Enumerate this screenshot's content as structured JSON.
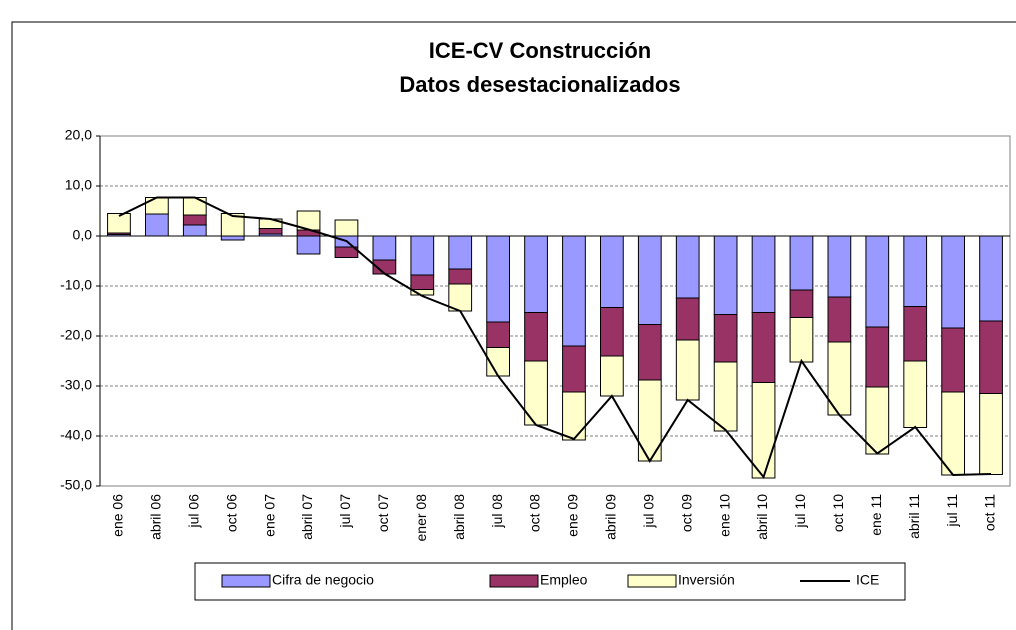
{
  "chart_data": {
    "type": "bar",
    "stacked": true,
    "title": "ICE-CV Construcción",
    "subtitle": "Datos desestacionalizados",
    "categories": [
      "ene 06",
      "abril 06",
      "jul 06",
      "oct 06",
      "ene 07",
      "abril 07",
      "jul 07",
      "oct 07",
      "ener 08",
      "abril 08",
      "jul 08",
      "oct 08",
      "ene 09",
      "abril 09",
      "jul 09",
      "oct 09",
      "ene 10",
      "abril 10",
      "jul 10",
      "oct 10",
      "ene 11",
      "abril 11",
      "jul 11",
      "oct 11"
    ],
    "series": [
      {
        "name": "Cifra de negocio",
        "type": "bar",
        "color": "#9999ff",
        "values": [
          0.3,
          4.4,
          2.2,
          -0.8,
          0.4,
          -3.6,
          -2.2,
          -4.8,
          -7.8,
          -6.6,
          -17.2,
          -15.3,
          -22.0,
          -14.3,
          -17.7,
          -12.4,
          -15.7,
          -15.3,
          -10.8,
          -12.2,
          -18.2,
          -14.1,
          -18.4,
          -17.0
        ]
      },
      {
        "name": "Empleo",
        "type": "bar",
        "color": "#993366",
        "values": [
          0.3,
          0,
          2.0,
          0,
          1.1,
          1.2,
          -2.1,
          -2.8,
          -2.9,
          -3.0,
          -5.1,
          -9.7,
          -9.2,
          -9.7,
          -11.1,
          -8.4,
          -9.5,
          -14.0,
          -5.5,
          -9.0,
          -12.0,
          -10.9,
          -12.8,
          -14.5
        ]
      },
      {
        "name": "Inversión",
        "type": "bar",
        "color": "#ffffcc",
        "values": [
          3.9,
          3.3,
          3.5,
          4.5,
          1.9,
          3.8,
          3.2,
          0,
          -1.1,
          -5.4,
          -5.7,
          -12.8,
          -9.6,
          -8.0,
          -16.2,
          -12.0,
          -13.8,
          -19.1,
          -8.9,
          -14.6,
          -13.4,
          -13.3,
          -16.6,
          -16.2
        ]
      },
      {
        "name": "ICE",
        "type": "line",
        "color": "#000000",
        "values": [
          4.0,
          7.7,
          7.7,
          4.0,
          3.4,
          1.3,
          -1.0,
          -7.5,
          -12.0,
          -15.0,
          -28.0,
          -37.8,
          -40.6,
          -32.0,
          -45.0,
          -32.8,
          -38.8,
          -48.2,
          -25.0,
          -35.8,
          -43.5,
          -38.2,
          -47.8,
          -47.6
        ]
      }
    ],
    "ylim": [
      -50,
      20
    ],
    "yticks": [
      {
        "value": -50,
        "label": "-50,0"
      },
      {
        "value": -40,
        "label": "-40,0"
      },
      {
        "value": -30,
        "label": "-30,0"
      },
      {
        "value": -20,
        "label": "-20,0"
      },
      {
        "value": -10,
        "label": "-10,0"
      },
      {
        "value": 0,
        "label": "0,0"
      },
      {
        "value": 10,
        "label": "10,0"
      },
      {
        "value": 20,
        "label": "20,0"
      }
    ],
    "grid": true,
    "legend": "bottom"
  }
}
